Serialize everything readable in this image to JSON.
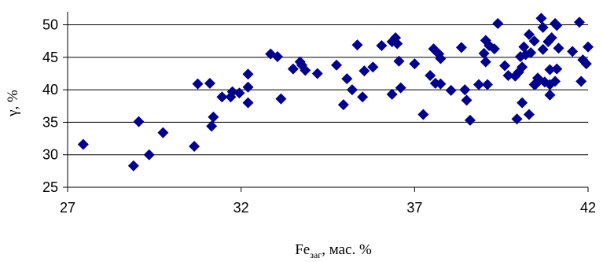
{
  "chart_data": {
    "type": "scatter",
    "title": "",
    "xlabel": {
      "base": "Fe",
      "subscript": "заг",
      "suffix": ", мас. %"
    },
    "ylabel": "γ, %",
    "xlim": [
      27,
      42
    ],
    "ylim": [
      25,
      52
    ],
    "xticks": [
      27,
      32,
      37,
      42
    ],
    "yticks": [
      25,
      30,
      35,
      40,
      45,
      50
    ],
    "grid": {
      "horizontal": true,
      "vertical": false
    },
    "legend": "none",
    "marker": {
      "shape": "diamond",
      "color": "#00008b"
    },
    "series": [
      {
        "points": [
          [
            27.45,
            31.6
          ],
          [
            28.9,
            28.3
          ],
          [
            29.05,
            35.1
          ],
          [
            29.35,
            30.0
          ],
          [
            29.75,
            33.4
          ],
          [
            30.65,
            31.3
          ],
          [
            30.75,
            40.9
          ],
          [
            31.1,
            41.0
          ],
          [
            31.15,
            34.4
          ],
          [
            31.2,
            35.8
          ],
          [
            31.45,
            38.9
          ],
          [
            31.7,
            38.9
          ],
          [
            31.75,
            39.7
          ],
          [
            31.95,
            39.5
          ],
          [
            32.2,
            42.4
          ],
          [
            32.2,
            40.4
          ],
          [
            32.2,
            38.0
          ],
          [
            32.85,
            45.5
          ],
          [
            33.05,
            45.1
          ],
          [
            33.15,
            38.6
          ],
          [
            33.5,
            43.2
          ],
          [
            33.7,
            44.3
          ],
          [
            33.75,
            43.8
          ],
          [
            33.85,
            43.0
          ],
          [
            34.2,
            42.5
          ],
          [
            34.75,
            43.8
          ],
          [
            34.95,
            37.7
          ],
          [
            35.05,
            41.7
          ],
          [
            35.2,
            40.0
          ],
          [
            35.35,
            46.9
          ],
          [
            35.5,
            38.9
          ],
          [
            35.55,
            42.9
          ],
          [
            35.8,
            43.5
          ],
          [
            36.05,
            46.8
          ],
          [
            36.35,
            47.4
          ],
          [
            36.35,
            39.3
          ],
          [
            36.45,
            48.0
          ],
          [
            36.5,
            47.1
          ],
          [
            36.55,
            44.4
          ],
          [
            36.6,
            40.3
          ],
          [
            37.0,
            44.0
          ],
          [
            37.25,
            36.2
          ],
          [
            37.45,
            42.2
          ],
          [
            37.55,
            46.3
          ],
          [
            37.6,
            41.0
          ],
          [
            37.7,
            45.5
          ],
          [
            37.75,
            40.9
          ],
          [
            37.75,
            44.8
          ],
          [
            38.05,
            39.9
          ],
          [
            38.35,
            46.5
          ],
          [
            38.45,
            40.0
          ],
          [
            38.5,
            38.4
          ],
          [
            38.6,
            35.3
          ],
          [
            38.85,
            40.8
          ],
          [
            39.0,
            45.6
          ],
          [
            39.05,
            47.6
          ],
          [
            39.05,
            44.3
          ],
          [
            39.1,
            40.8
          ],
          [
            39.15,
            46.8
          ],
          [
            39.3,
            46.3
          ],
          [
            39.4,
            50.2
          ],
          [
            39.6,
            43.7
          ],
          [
            39.7,
            42.2
          ],
          [
            39.9,
            42.1
          ],
          [
            39.95,
            35.5
          ],
          [
            40.0,
            42.7
          ],
          [
            40.05,
            45.1
          ],
          [
            40.1,
            43.5
          ],
          [
            40.1,
            38.0
          ],
          [
            40.15,
            46.6
          ],
          [
            40.2,
            45.4
          ],
          [
            40.3,
            48.5
          ],
          [
            40.3,
            36.2
          ],
          [
            40.35,
            45.7
          ],
          [
            40.45,
            47.5
          ],
          [
            40.45,
            40.8
          ],
          [
            40.5,
            40.9
          ],
          [
            40.55,
            41.8
          ],
          [
            40.65,
            51.0
          ],
          [
            40.7,
            49.6
          ],
          [
            40.7,
            46.2
          ],
          [
            40.75,
            41.2
          ],
          [
            40.85,
            47.4
          ],
          [
            40.9,
            43.1
          ],
          [
            40.9,
            40.8
          ],
          [
            40.9,
            39.2
          ],
          [
            40.95,
            48.0
          ],
          [
            41.05,
            41.3
          ],
          [
            41.05,
            50.2
          ],
          [
            41.1,
            49.9
          ],
          [
            41.1,
            43.2
          ],
          [
            41.15,
            46.4
          ],
          [
            41.55,
            45.9
          ],
          [
            41.75,
            50.4
          ],
          [
            41.8,
            41.3
          ],
          [
            41.85,
            44.6
          ],
          [
            41.95,
            44.0
          ],
          [
            42.0,
            46.6
          ]
        ]
      }
    ]
  }
}
